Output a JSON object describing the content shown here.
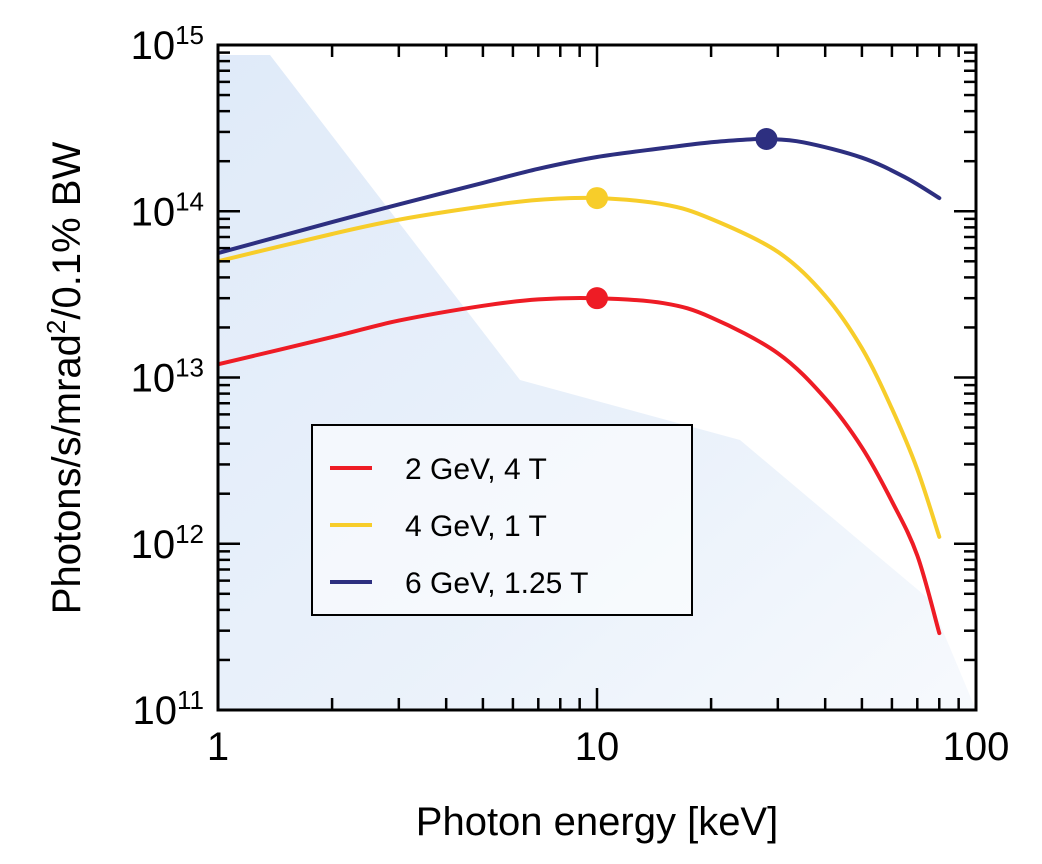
{
  "chart_data": {
    "type": "line",
    "xlabel": "Photon energy [keV]",
    "ylabel_parts": {
      "pre": "Photons/s/mrad",
      "sup": "2",
      "post": "/0.1% BW"
    },
    "xscale": "log",
    "yscale": "log",
    "xlim": [
      1,
      100
    ],
    "ylim": [
      100000000000.0,
      1000000000000000.0
    ],
    "x_ticks": [
      {
        "value": 1,
        "label": "1"
      },
      {
        "value": 10,
        "label": "10"
      },
      {
        "value": 100,
        "label": "100"
      }
    ],
    "y_ticks": [
      {
        "value": 100000000000.0,
        "base": "10",
        "exp": "11"
      },
      {
        "value": 1000000000000.0,
        "base": "10",
        "exp": "12"
      },
      {
        "value": 10000000000000.0,
        "base": "10",
        "exp": "13"
      },
      {
        "value": 100000000000000.0,
        "base": "10",
        "exp": "14"
      },
      {
        "value": 1000000000000000.0,
        "base": "10",
        "exp": "15"
      }
    ],
    "legend_position": "lower-left",
    "series": [
      {
        "name": "2 GeV, 4 T",
        "color": "#ee1c25",
        "x": [
          1,
          2,
          3,
          5,
          7,
          10,
          15,
          20,
          30,
          40,
          50,
          60,
          70,
          80
        ],
        "y": [
          12000000000000.0,
          17500000000000.0,
          22000000000000.0,
          27000000000000.0,
          29500000000000.0,
          30000000000000.0,
          28000000000000.0,
          23000000000000.0,
          14000000000000.0,
          7500000000000.0,
          3800000000000.0,
          1800000000000.0,
          850000000000.0,
          290000000000.0
        ],
        "marker": {
          "x": 10,
          "y": 30000000000000.0
        }
      },
      {
        "name": "4 GeV, 1 T",
        "color": "#f7cd2a",
        "x": [
          1,
          2,
          3,
          5,
          7,
          10,
          15,
          20,
          30,
          40,
          50,
          60,
          70,
          80
        ],
        "y": [
          50000000000000.0,
          73000000000000.0,
          89000000000000.0,
          107000000000000.0,
          117000000000000.0,
          120000000000000.0,
          110000000000000.0,
          90000000000000.0,
          57000000000000.0,
          31000000000000.0,
          15000000000000.0,
          6500000000000.0,
          2800000000000.0,
          1100000000000.0
        ],
        "marker": {
          "x": 10,
          "y": 120000000000000.0
        }
      },
      {
        "name": "6 GeV, 1.25 T",
        "color": "#2d2f80",
        "x": [
          1,
          2,
          3,
          5,
          7,
          10,
          15,
          20,
          25,
          28,
          35,
          50,
          65,
          80
        ],
        "y": [
          56000000000000.0,
          86000000000000.0,
          110000000000000.0,
          148000000000000.0,
          180000000000000.0,
          212000000000000.0,
          240000000000000.0,
          260000000000000.0,
          270000000000000.0,
          272000000000000.0,
          260000000000000.0,
          210000000000000.0,
          160000000000000.0,
          120000000000000.0
        ],
        "marker": {
          "x": 28,
          "y": 272000000000000.0
        }
      }
    ]
  }
}
